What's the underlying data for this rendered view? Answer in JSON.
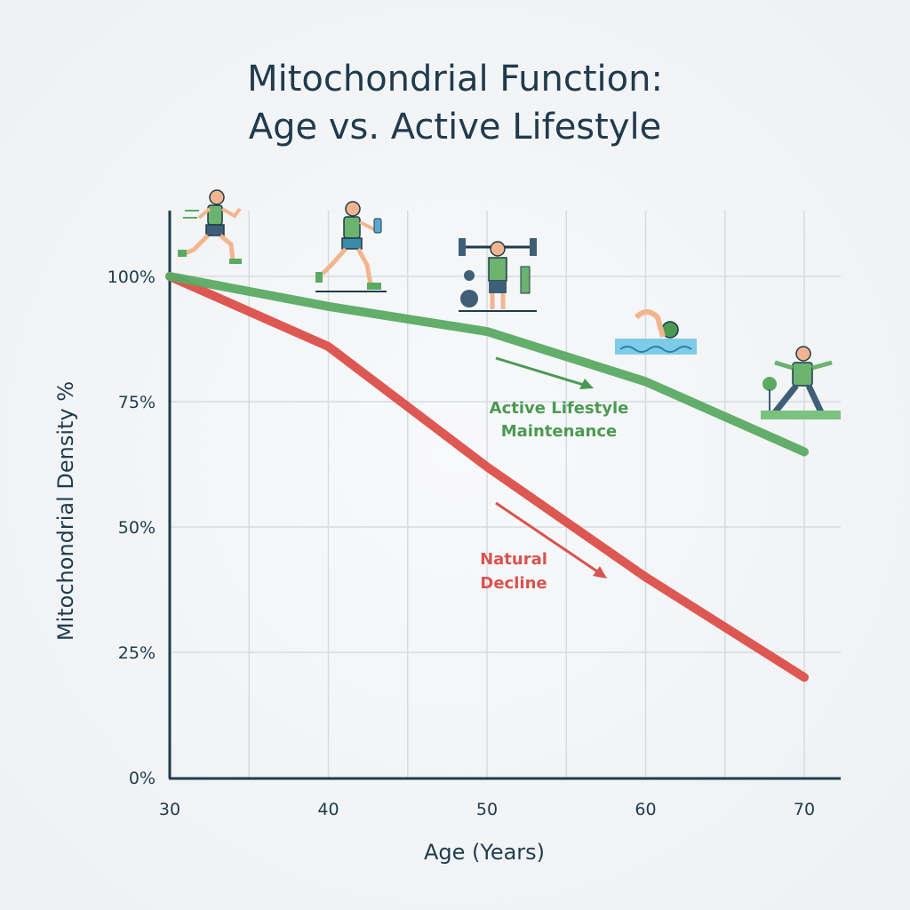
{
  "chart_data": {
    "type": "line",
    "title_line1": "Mitochondrial Function:",
    "title_line2": "Age vs. Active Lifestyle",
    "xlabel": "Age (Years)",
    "ylabel": "Mitochondrial Density %",
    "x": [
      30,
      40,
      50,
      60,
      70
    ],
    "xlim": [
      30,
      70
    ],
    "ylim": [
      0,
      100
    ],
    "x_ticks": [
      "30",
      "40",
      "50",
      "60",
      "70"
    ],
    "y_ticks": [
      "0%",
      "25%",
      "50%",
      "75%",
      "100%"
    ],
    "grid": true,
    "series": [
      {
        "name": "Active Lifestyle Maintenance",
        "color": "#5aaa62",
        "values": [
          100,
          94,
          89,
          79,
          65
        ]
      },
      {
        "name": "Natural Decline",
        "color": "#dc4f4a",
        "values": [
          100,
          86,
          62,
          40,
          20
        ]
      }
    ],
    "annotations": [
      {
        "line1": "Active Lifestyle",
        "line2": "Maintenance",
        "color": "#4a9a52"
      },
      {
        "line1": "Natural",
        "line2": "Decline",
        "color": "#d9534f"
      }
    ],
    "icons": [
      "sprinter-icon",
      "runner-with-water-icon",
      "weightlifter-icon",
      "swimmer-icon",
      "tai-chi-elder-icon"
    ]
  }
}
